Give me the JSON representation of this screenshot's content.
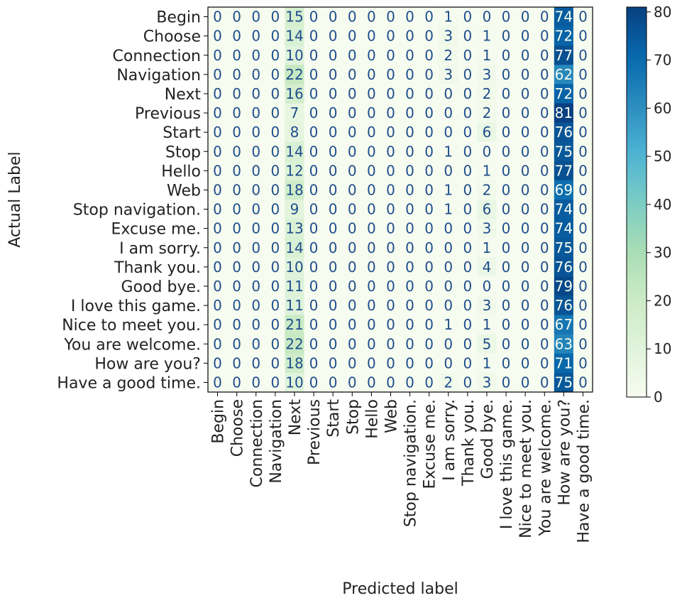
{
  "chart_data": {
    "type": "heatmap",
    "xlabel": "Predicted label",
    "ylabel": "Actual Label",
    "categories": [
      "Begin",
      "Choose",
      "Connection",
      "Navigation",
      "Next",
      "Previous",
      "Start",
      "Stop",
      "Hello",
      "Web",
      "Stop navigation.",
      "Excuse me.",
      "I am sorry.",
      "Thank you.",
      "Good bye.",
      "I love this game.",
      "Nice to meet you.",
      "You are welcome.",
      "How are you?",
      "Have a good time."
    ],
    "matrix": [
      [
        0,
        0,
        0,
        0,
        15,
        0,
        0,
        0,
        0,
        0,
        0,
        0,
        1,
        0,
        0,
        0,
        0,
        0,
        74,
        0
      ],
      [
        0,
        0,
        0,
        0,
        14,
        0,
        0,
        0,
        0,
        0,
        0,
        0,
        3,
        0,
        1,
        0,
        0,
        0,
        72,
        0
      ],
      [
        0,
        0,
        0,
        0,
        10,
        0,
        0,
        0,
        0,
        0,
        0,
        0,
        2,
        0,
        1,
        0,
        0,
        0,
        77,
        0
      ],
      [
        0,
        0,
        0,
        0,
        22,
        0,
        0,
        0,
        0,
        0,
        0,
        0,
        3,
        0,
        3,
        0,
        0,
        0,
        62,
        0
      ],
      [
        0,
        0,
        0,
        0,
        16,
        0,
        0,
        0,
        0,
        0,
        0,
        0,
        0,
        0,
        2,
        0,
        0,
        0,
        72,
        0
      ],
      [
        0,
        0,
        0,
        0,
        7,
        0,
        0,
        0,
        0,
        0,
        0,
        0,
        0,
        0,
        2,
        0,
        0,
        0,
        81,
        0
      ],
      [
        0,
        0,
        0,
        0,
        8,
        0,
        0,
        0,
        0,
        0,
        0,
        0,
        0,
        0,
        6,
        0,
        0,
        0,
        76,
        0
      ],
      [
        0,
        0,
        0,
        0,
        14,
        0,
        0,
        0,
        0,
        0,
        0,
        0,
        1,
        0,
        0,
        0,
        0,
        0,
        75,
        0
      ],
      [
        0,
        0,
        0,
        0,
        12,
        0,
        0,
        0,
        0,
        0,
        0,
        0,
        0,
        0,
        1,
        0,
        0,
        0,
        77,
        0
      ],
      [
        0,
        0,
        0,
        0,
        18,
        0,
        0,
        0,
        0,
        0,
        0,
        0,
        1,
        0,
        2,
        0,
        0,
        0,
        69,
        0
      ],
      [
        0,
        0,
        0,
        0,
        9,
        0,
        0,
        0,
        0,
        0,
        0,
        0,
        1,
        0,
        6,
        0,
        0,
        0,
        74,
        0
      ],
      [
        0,
        0,
        0,
        0,
        13,
        0,
        0,
        0,
        0,
        0,
        0,
        0,
        0,
        0,
        3,
        0,
        0,
        0,
        74,
        0
      ],
      [
        0,
        0,
        0,
        0,
        14,
        0,
        0,
        0,
        0,
        0,
        0,
        0,
        0,
        0,
        1,
        0,
        0,
        0,
        75,
        0
      ],
      [
        0,
        0,
        0,
        0,
        10,
        0,
        0,
        0,
        0,
        0,
        0,
        0,
        0,
        0,
        4,
        0,
        0,
        0,
        76,
        0
      ],
      [
        0,
        0,
        0,
        0,
        11,
        0,
        0,
        0,
        0,
        0,
        0,
        0,
        0,
        0,
        0,
        0,
        0,
        0,
        79,
        0
      ],
      [
        0,
        0,
        0,
        0,
        11,
        0,
        0,
        0,
        0,
        0,
        0,
        0,
        0,
        0,
        3,
        0,
        0,
        0,
        76,
        0
      ],
      [
        0,
        0,
        0,
        0,
        21,
        0,
        0,
        0,
        0,
        0,
        0,
        0,
        1,
        0,
        1,
        0,
        0,
        0,
        67,
        0
      ],
      [
        0,
        0,
        0,
        0,
        22,
        0,
        0,
        0,
        0,
        0,
        0,
        0,
        0,
        0,
        5,
        0,
        0,
        0,
        63,
        0
      ],
      [
        0,
        0,
        0,
        0,
        18,
        0,
        0,
        0,
        0,
        0,
        0,
        0,
        0,
        0,
        1,
        0,
        0,
        0,
        71,
        0
      ],
      [
        0,
        0,
        0,
        0,
        10,
        0,
        0,
        0,
        0,
        0,
        0,
        0,
        2,
        0,
        3,
        0,
        0,
        0,
        75,
        0
      ]
    ],
    "colorbar": {
      "range": [
        0,
        81
      ],
      "ticks": [
        0,
        10,
        20,
        30,
        40,
        50,
        60,
        70,
        80
      ],
      "colormap": "GnBu",
      "low_color": "#f7fcf0",
      "high_color": "#084081"
    }
  }
}
